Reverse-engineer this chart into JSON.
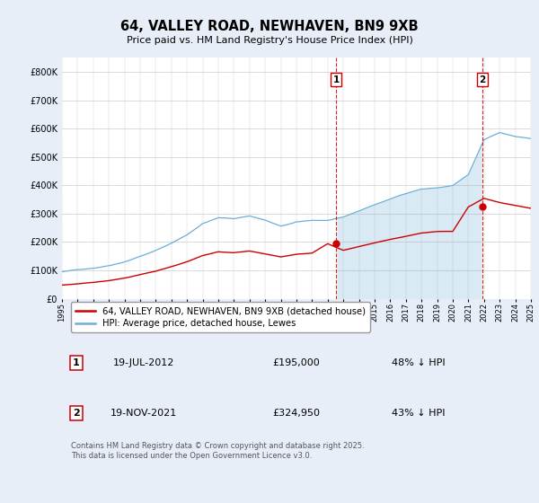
{
  "title": "64, VALLEY ROAD, NEWHAVEN, BN9 9XB",
  "subtitle": "Price paid vs. HM Land Registry's House Price Index (HPI)",
  "legend_line1": "64, VALLEY ROAD, NEWHAVEN, BN9 9XB (detached house)",
  "legend_line2": "HPI: Average price, detached house, Lewes",
  "transaction1_label": "1",
  "transaction1_date": "19-JUL-2012",
  "transaction1_price": "£195,000",
  "transaction1_hpi": "48% ↓ HPI",
  "transaction2_label": "2",
  "transaction2_date": "19-NOV-2021",
  "transaction2_price": "£324,950",
  "transaction2_hpi": "43% ↓ HPI",
  "footnote": "Contains HM Land Registry data © Crown copyright and database right 2025.\nThis data is licensed under the Open Government Licence v3.0.",
  "hpi_color": "#6baed6",
  "price_color": "#cc0000",
  "background_color": "#e8eef8",
  "plot_bg_color": "#ffffff",
  "ylim": [
    0,
    850000
  ],
  "yticks": [
    0,
    100000,
    200000,
    300000,
    400000,
    500000,
    600000,
    700000,
    800000
  ],
  "ytick_labels": [
    "£0",
    "£100K",
    "£200K",
    "£300K",
    "£400K",
    "£500K",
    "£600K",
    "£700K",
    "£800K"
  ],
  "year_start": 1995,
  "year_end": 2025,
  "transaction1_year": 2012.54,
  "transaction1_value": 195000,
  "transaction2_year": 2021.9,
  "transaction2_value": 324950
}
